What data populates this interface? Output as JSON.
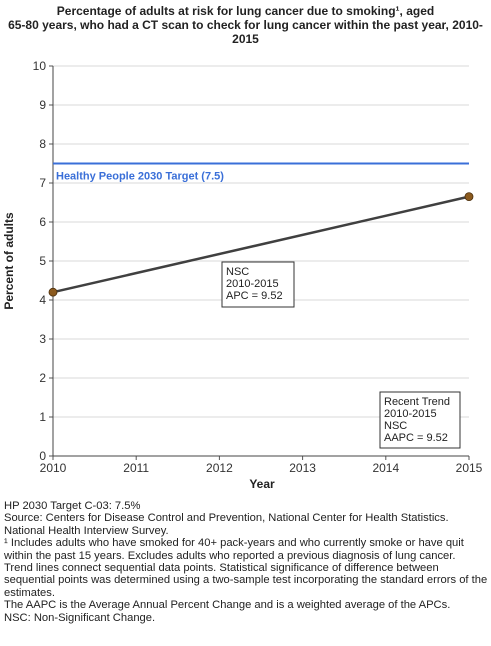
{
  "chart_data": {
    "type": "line",
    "title_lines": [
      "Percentage of adults at risk for lung cancer due to smoking¹, aged",
      "65-80 years, who had a CT scan to check for lung cancer within the past year, 2010-",
      "2015"
    ],
    "xlabel": "Year",
    "ylabel": "Percent of adults",
    "x_ticks": [
      "2010",
      "2011",
      "2012",
      "2013",
      "2014",
      "2015"
    ],
    "y_ticks": [
      "0",
      "1",
      "2",
      "3",
      "4",
      "5",
      "6",
      "7",
      "8",
      "9",
      "10"
    ],
    "xlim": [
      2010,
      2015
    ],
    "ylim": [
      0,
      10
    ],
    "grid": true,
    "series": [
      {
        "x": [
          2010,
          2015
        ],
        "values": [
          4.2,
          6.65
        ],
        "color": "#404040",
        "marker_color": "#8B5A1E"
      }
    ],
    "target": {
      "value": 7.5,
      "label": "Healthy People 2030 Target (7.5)",
      "color": "#3A6FD8"
    },
    "annotations": [
      {
        "lines": [
          "NSC",
          "2010-2015",
          "APC =  9.52"
        ]
      },
      {
        "lines": [
          "Recent Trend",
          "2010-2015",
          "NSC",
          "AAPC =  9.52"
        ]
      }
    ]
  },
  "footnotes": [
    "HP 2030 Target C-03: 7.5%",
    "Source: Centers for Disease Control and Prevention, National Center for Health Statistics. National Health Interview Survey.",
    "¹ Includes adults who have smoked for 40+ pack-years and who currently smoke or have quit within the past 15 years. Excludes adults who reported a previous diagnosis of lung cancer.",
    "Trend lines connect sequential data points. Statistical significance of difference between sequential points was determined using a two-sample test incorporating the standard errors of the estimates.",
    "The AAPC is the Average Annual Percent Change and is a weighted average of the APCs.",
    "NSC: Non-Significant Change."
  ]
}
